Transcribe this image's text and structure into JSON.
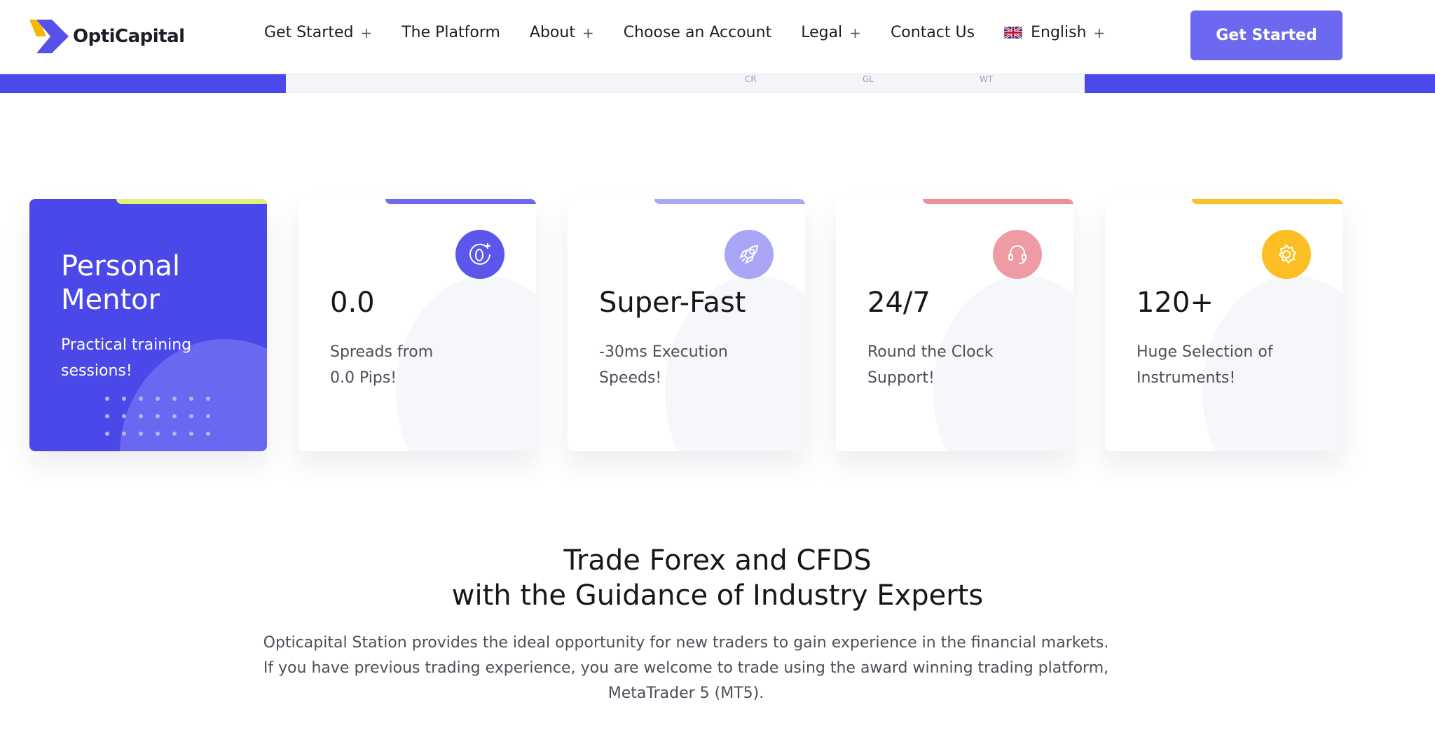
{
  "header": {
    "logo_text": "OptiCapital",
    "nav": [
      {
        "label": "Get Started",
        "plus": true
      },
      {
        "label": "The Platform",
        "plus": false
      },
      {
        "label": "About",
        "plus": true
      },
      {
        "label": "Choose an Account",
        "plus": false
      },
      {
        "label": "Legal",
        "plus": true
      },
      {
        "label": "Contact Us",
        "plus": false
      },
      {
        "label": "English",
        "plus": true,
        "icon": "uk-flag-icon"
      }
    ],
    "cta": "Get Started"
  },
  "hero_strip": {
    "labels": [
      "CR",
      "GL",
      "WT"
    ]
  },
  "colors": {
    "primary": "#4b48ea",
    "button": "#6c68f0",
    "lime": "#dff27a",
    "lavender": "#a9a6f6",
    "pink": "#ef8f99",
    "amber": "#fbbf24"
  },
  "cards": [
    {
      "title": "Personal Mentor",
      "desc": "Practical training sessions!"
    },
    {
      "title": "0.0",
      "desc": "Spreads from 0.0 Pips!",
      "icon": "zero-plus-icon"
    },
    {
      "title": "Super-Fast",
      "desc": "-30ms Execution Speeds!",
      "icon": "rocket-icon"
    },
    {
      "title": "24/7",
      "desc": "Round the Clock Support!",
      "icon": "headset-icon"
    },
    {
      "title": "120+",
      "desc": "Huge Selection of Instruments!",
      "icon": "gear-icon"
    }
  ],
  "section": {
    "heading_line1": "Trade Forex and CFDS",
    "heading_line2": "with the Guidance of Industry Experts",
    "para_line1": "Opticapital Station provides the ideal opportunity for new traders to gain experience in the financial markets.",
    "para_line2": "If you have previous trading experience, you are welcome to trade using the award winning trading platform,",
    "para_line3": "MetaTrader 5 (MT5)."
  }
}
